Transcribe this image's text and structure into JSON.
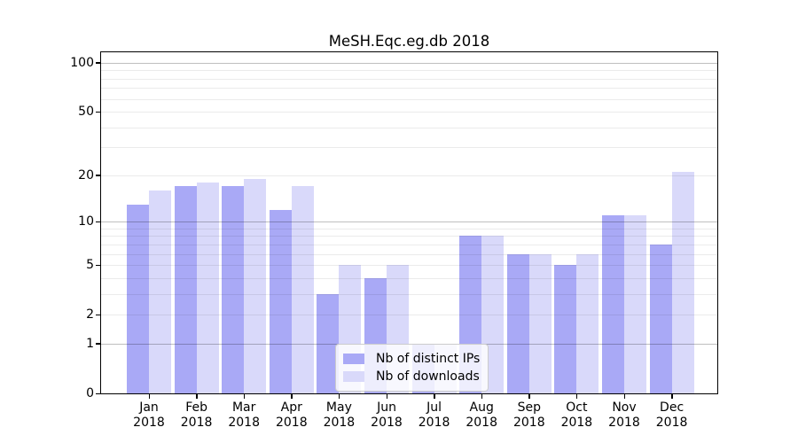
{
  "chart_data": {
    "type": "bar",
    "title": "MeSH.Eqc.eg.db 2018",
    "x": {
      "months": [
        "Jan",
        "Feb",
        "Mar",
        "Apr",
        "May",
        "Jun",
        "Jul",
        "Aug",
        "Sep",
        "Oct",
        "Nov",
        "Dec"
      ],
      "year": "2018"
    },
    "series": [
      {
        "name": "Nb of distinct IPs",
        "color": "#a9a9f6",
        "values": [
          13,
          17,
          17,
          12,
          3,
          4,
          1,
          8,
          6,
          5,
          11,
          7
        ]
      },
      {
        "name": "Nb of downloads",
        "color": "#d9d9fa",
        "values": [
          16,
          18,
          19,
          17,
          5,
          5,
          1,
          8,
          6,
          6,
          11,
          21
        ]
      }
    ],
    "y_axis": {
      "scale": "log10(1+v)",
      "tick_labels": [
        0,
        1,
        2,
        5,
        10,
        20,
        50,
        100
      ],
      "minor_gridlines": [
        2,
        3,
        4,
        5,
        6,
        7,
        8,
        9,
        20,
        30,
        40,
        50,
        60,
        70,
        80,
        90
      ],
      "major_gridlines": [
        1,
        10,
        100
      ],
      "ylim": [
        0,
        100
      ]
    },
    "grid": "on",
    "legend_position": "lower center",
    "colors": {
      "minor_grid": "rgba(0,0,0,0.08)",
      "major_grid": "rgba(0,0,0,0.25)",
      "spine": "#000000"
    }
  }
}
